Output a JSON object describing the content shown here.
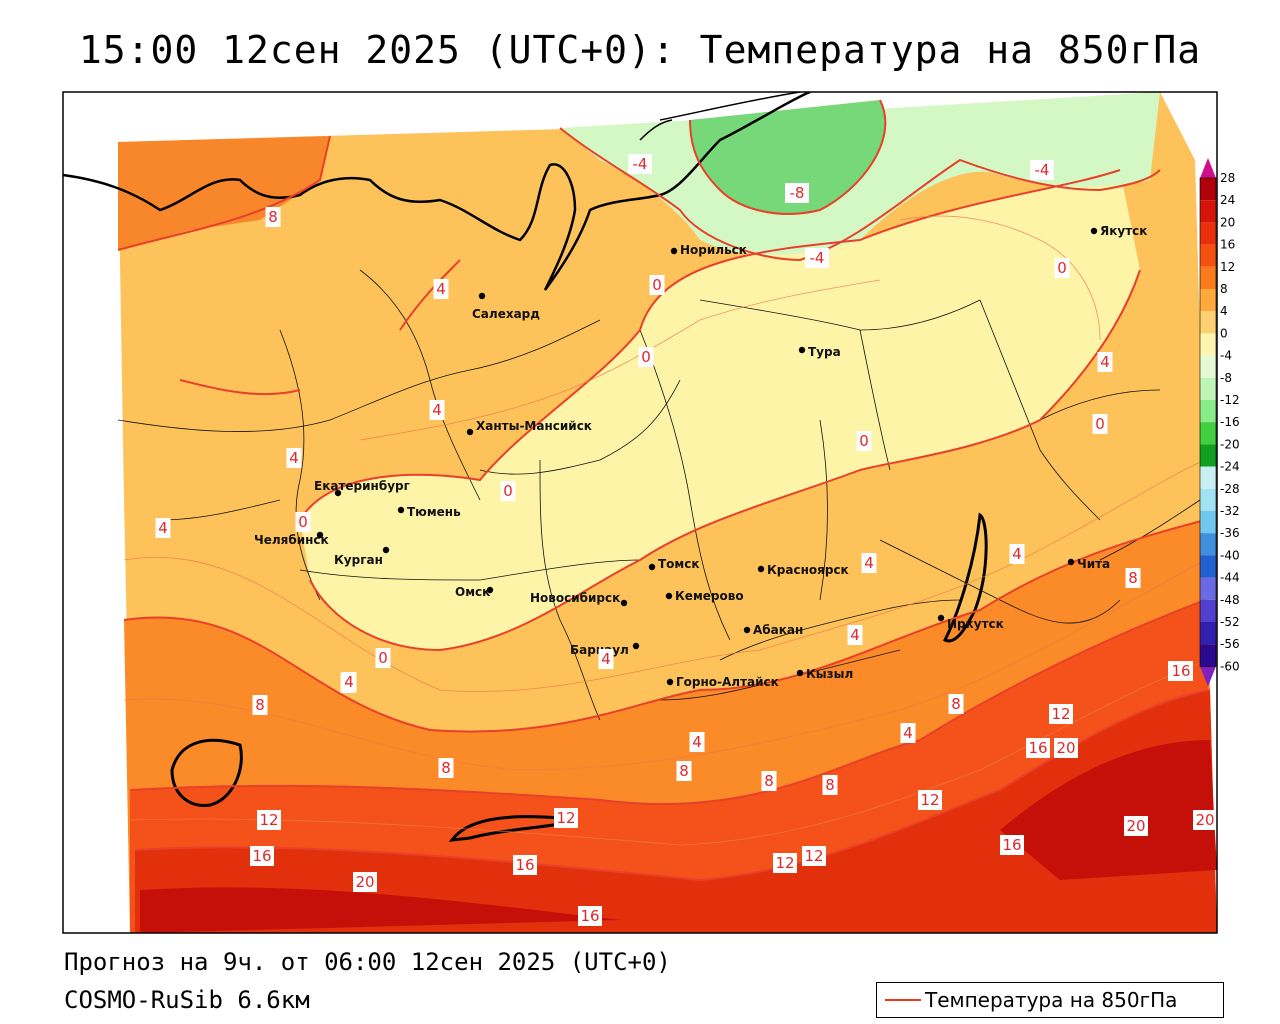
{
  "title": "15:00 12сен 2025 (UTC+0): Температура на 850гПа",
  "footer": {
    "forecast": "Прогноз на 9ч. от 06:00 12сен 2025 (UTC+0)",
    "model": "COSMO-RuSib 6.6км"
  },
  "legend": {
    "label": "Температура на 850гПа",
    "line_color": "#e63a1e"
  },
  "colorbar": {
    "ticks": [
      "28",
      "24",
      "20",
      "16",
      "12",
      "8",
      "4",
      "0",
      "-4",
      "-8",
      "-12",
      "-16",
      "-20",
      "-24",
      "-28",
      "-32",
      "-36",
      "-40",
      "-44",
      "-48",
      "-52",
      "-56",
      "-60"
    ],
    "colors": [
      "#b0000a",
      "#d41408",
      "#e8300c",
      "#f4520e",
      "#fb7a1c",
      "#fdaa3c",
      "#fdd070",
      "#fef6b0",
      "#e4fbd4",
      "#bff6b8",
      "#88ec88",
      "#40d040",
      "#10a020",
      "#c8f0f4",
      "#a0e4f4",
      "#70c8f0",
      "#4090e0",
      "#2060d0",
      "#6a6ae6",
      "#5040d0",
      "#3020b0",
      "#2a0a90"
    ],
    "top_arrow_color": "#d0108a",
    "bottom_arrow_color": "#8020c0"
  },
  "cities": [
    {
      "name": "Якутск"
    },
    {
      "name": "Норильск"
    },
    {
      "name": "Салехард"
    },
    {
      "name": "Тура"
    },
    {
      "name": "Ханты-Мансийск"
    },
    {
      "name": "Екатеринбург"
    },
    {
      "name": "Тюмень"
    },
    {
      "name": "Челябинск"
    },
    {
      "name": "Курган"
    },
    {
      "name": "Омск"
    },
    {
      "name": "Томск"
    },
    {
      "name": "Красноярск"
    },
    {
      "name": "Новосибирск"
    },
    {
      "name": "Кемерово"
    },
    {
      "name": "Абакан"
    },
    {
      "name": "Барнаул"
    },
    {
      "name": "Иркутск"
    },
    {
      "name": "Чита"
    },
    {
      "name": "Кызыл"
    },
    {
      "name": "Горно-Алтайск"
    }
  ],
  "isotherm_labels": [
    "-4",
    "-8",
    "-4",
    "-4",
    "8",
    "4",
    "0",
    "0",
    "4",
    "4",
    "0",
    "0",
    "4",
    "0",
    "4",
    "0",
    "0",
    "4",
    "4",
    "4",
    "8",
    "12",
    "16",
    "20",
    "16",
    "12",
    "16",
    "12",
    "12",
    "16",
    "20",
    "8",
    "4",
    "4",
    "4",
    "8",
    "8",
    "8",
    "4",
    "8",
    "12",
    "12",
    "16",
    "20",
    "16",
    "20",
    "16",
    "8",
    "4",
    "0"
  ]
}
